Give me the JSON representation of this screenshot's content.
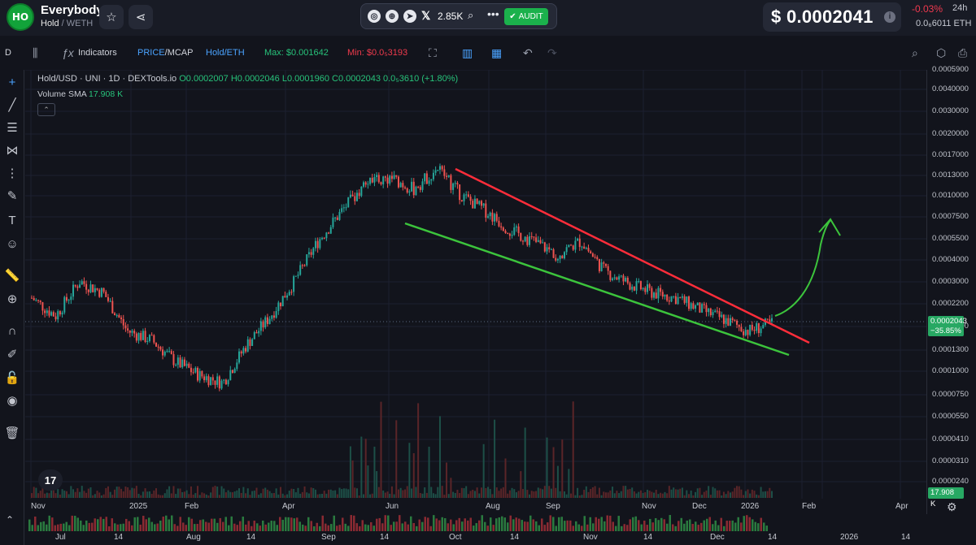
{
  "header": {
    "logo_text": "HO",
    "token_name": "Everybody",
    "pair_base": "Hold",
    "pair_quote": "WETH",
    "followers": "2.85K",
    "audit_label": "AUDIT",
    "price": "$ 0.0002041",
    "change_pct": "-0.03%",
    "change_period": "24h",
    "eth_price": "0.0₆6011 ETH"
  },
  "toolbar": {
    "interval": "D",
    "indicators_label": "Indicators",
    "price_mcap_price": "PRICE",
    "price_mcap_mcap": "MCAP",
    "pair_toggle": "Hold/ETH",
    "max_label": "Max: $0.001642",
    "min_label": "Min: $0.0₅3193"
  },
  "legend": {
    "symbol": "Hold/USD · UNI · 1D · DEXTools.io",
    "ohlc": "O0.0002007 H0.0002046 L0.0001960 C0.0002043 0.0₅3610 (+1.80%)",
    "volume_sma_label": "Volume SMA",
    "volume_sma_value": "17.908 K",
    "collapse_icon": "chevron-up"
  },
  "price_tag": {
    "value": "0.0002043",
    "change": "−35.85%"
  },
  "volume_tag": "17.908 K",
  "price_axis_ticks": [
    "0.0005900",
    "0.0040000",
    "0.0030000",
    "0.0020000",
    "0.0017000",
    "0.0013000",
    "0.0010000",
    "0.0007500",
    "0.0005500",
    "0.0004000",
    "0.0003000",
    "0.0002200",
    "0.0001600",
    "0.0001300",
    "0.0001000",
    "0.0000750",
    "0.0000550",
    "0.0000410",
    "0.0000310",
    "0.0000240"
  ],
  "time_axis_labels": [
    "Nov",
    "2025",
    "Feb",
    "Apr",
    "Jun",
    "Aug",
    "Sep",
    "Nov",
    "Dec",
    "2026",
    "Feb",
    "Apr"
  ],
  "bottom_axis_labels": [
    "Jul",
    "14",
    "Aug",
    "14",
    "Sep",
    "14",
    "Oct",
    "14",
    "Nov",
    "14",
    "Dec",
    "14",
    "2026",
    "14"
  ],
  "chart_data": {
    "type": "candlestick",
    "title": "Hold/USD · UNI · 1D · DEXTools.io",
    "last_close": 0.0002043,
    "change_pct": -35.85,
    "max": 0.001642,
    "annotations": [
      "descending channel upper trendline (red)",
      "descending channel lower trendline (green)",
      "hand-drawn upward arrow (green)"
    ],
    "price_series_approx": [
      0.00028,
      0.00022,
      0.00035,
      0.0003,
      0.00018,
      0.00016,
      0.00012,
      0.0001,
      9e-05,
      0.00015,
      0.00022,
      0.00035,
      0.0006,
      0.0009,
      0.0013,
      0.0014,
      0.0012,
      0.0016,
      0.0011,
      0.0009,
      0.0007,
      0.0006,
      0.0005,
      0.0006,
      0.0004,
      0.00034,
      0.0003,
      0.00028,
      0.00024,
      0.00021,
      0.00018,
      0.0002
    ]
  },
  "colors": {
    "up": "#26a69a",
    "down": "#ef5350",
    "red_line": "#ff2d3a",
    "green_line": "#3cc43c",
    "accent": "#2962ff"
  }
}
